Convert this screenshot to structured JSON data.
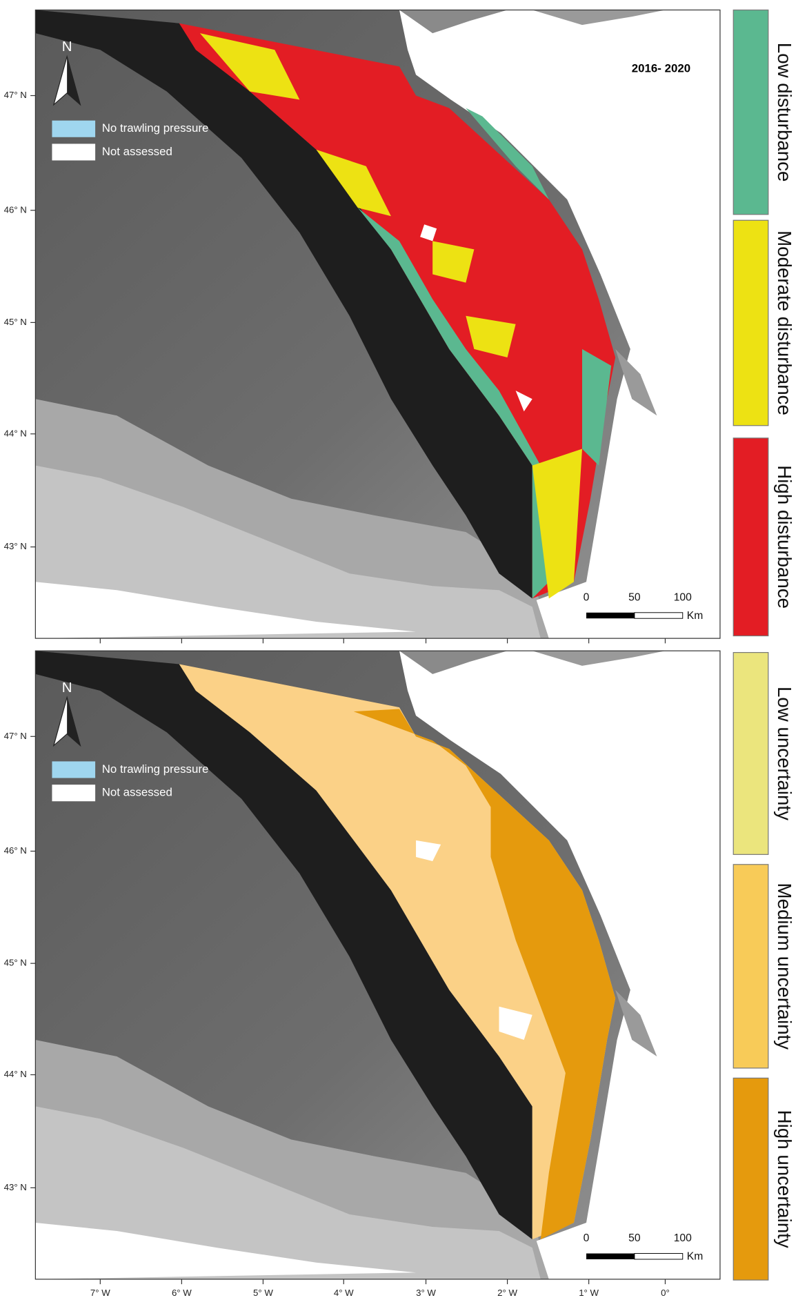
{
  "panels": [
    {
      "title": "2016- 2020",
      "north": "N",
      "legend": [
        "No trawling pressure",
        "Not assessed"
      ],
      "lat_labels": [
        "47° N",
        "46° N",
        "45° N",
        "44° N",
        "43° N"
      ],
      "scale": {
        "ticks": [
          "0",
          "50",
          "100"
        ],
        "unit": "Km"
      }
    },
    {
      "north": "N",
      "legend": [
        "No trawling pressure",
        "Not assessed"
      ],
      "lat_labels": [
        "47° N",
        "46° N",
        "45° N",
        "44° N",
        "43° N"
      ],
      "scale": {
        "ticks": [
          "0",
          "50",
          "100"
        ],
        "unit": "Km"
      },
      "lon_labels": [
        "7° W",
        "6° W",
        "5° W",
        "4° W",
        "3° W",
        "2° W",
        "1° W",
        "0°"
      ]
    }
  ],
  "legend": [
    {
      "label": "Low disturbance",
      "color": "#5bb890"
    },
    {
      "label": "Moderate disturbance",
      "color": "#ede213"
    },
    {
      "label": "High disturbance",
      "color": "#e31d24"
    },
    {
      "label": "Low uncertainty",
      "color": "#ebe57d"
    },
    {
      "label": "Medium uncertainty",
      "color": "#f8cb58"
    },
    {
      "label": "High uncertainty",
      "color": "#e59a0d"
    }
  ]
}
